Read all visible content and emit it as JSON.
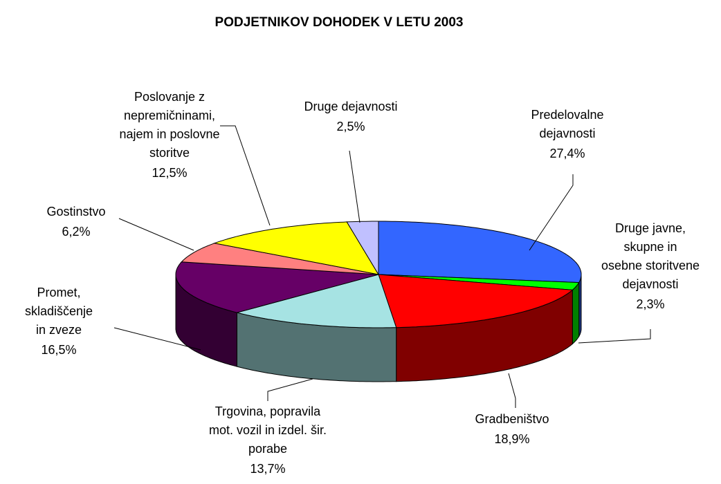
{
  "chart_data": {
    "type": "pie3d",
    "title": "PODJETNIKOV DOHODEK V LETU 2003",
    "categories": [
      "Predelovalne\ndejavnosti",
      "Druge javne,\nskupne in\nosebne  storitvene\ndejavnosti",
      "Gradbeništvo",
      "Trgovina, popravila\nmot. vozil in izdel. šir.\nporabe",
      "Promet,\nskladiščenje\nin zveze",
      "Gostinstvo",
      "Poslovanje z\nnepremičninami,\nnajem in poslovne\nstoritve",
      "Druge dejavnosti"
    ],
    "values": [
      27.4,
      2.3,
      18.9,
      13.7,
      16.5,
      6.2,
      12.5,
      2.5
    ],
    "value_labels": [
      "27,4%",
      "2,3%",
      "18,9%",
      "13,7%",
      "16,5%",
      "6,2%",
      "12,5%",
      "2,5%"
    ],
    "colors": [
      "#3366ff",
      "#00ff00",
      "#ff0000",
      "#a6e3e3",
      "#660066",
      "#ff8080",
      "#ffff00",
      "#c0c0ff"
    ]
  }
}
